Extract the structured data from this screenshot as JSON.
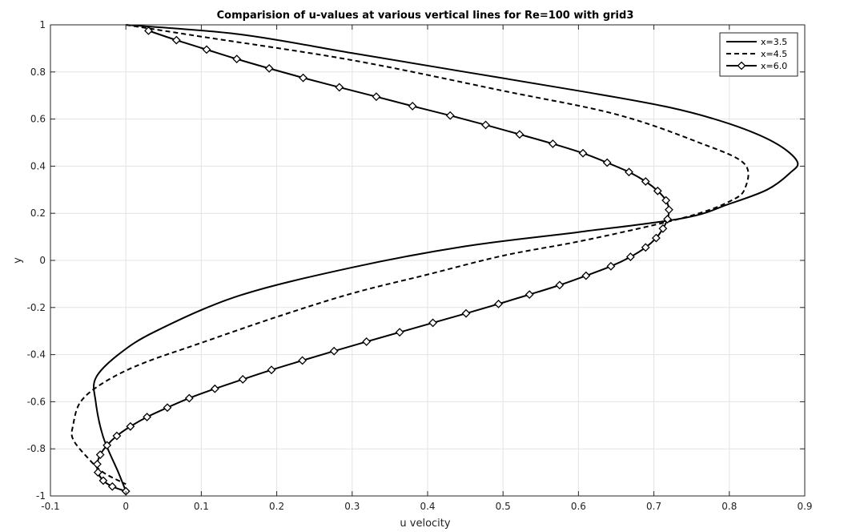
{
  "chart_data": {
    "type": "line",
    "title": "Comparision of u-values at various vertical lines for Re=100 with grid3",
    "xlabel": "u velocity",
    "ylabel": "y",
    "xlim": [
      -0.1,
      0.9
    ],
    "ylim": [
      -1,
      1
    ],
    "xticks": [
      "-0.1",
      "0",
      "0.1",
      "0.2",
      "0.3",
      "0.4",
      "0.5",
      "0.6",
      "0.7",
      "0.8",
      "0.9"
    ],
    "yticks": [
      "-1",
      "-0.8",
      "-0.6",
      "-0.4",
      "-0.2",
      "0",
      "0.2",
      "0.4",
      "0.6",
      "0.8",
      "1"
    ],
    "grid": true,
    "legend_position": "top-right",
    "series": [
      {
        "name": "x=3.5",
        "style": "solid",
        "x": [
          0,
          0.15,
          0.3,
          0.45,
          0.6,
          0.72,
          0.8,
          0.86,
          0.89,
          0.88,
          0.85,
          0.8,
          0.74,
          0.6,
          0.45,
          0.3,
          0.15,
          0.04,
          -0.01,
          -0.04,
          -0.04,
          -0.03,
          -0.01,
          0
        ],
        "y": [
          1,
          0.96,
          0.88,
          0.8,
          0.72,
          0.65,
          0.58,
          0.5,
          0.42,
          0.37,
          0.3,
          0.24,
          0.18,
          0.12,
          0.06,
          -0.03,
          -0.15,
          -0.3,
          -0.4,
          -0.5,
          -0.6,
          -0.75,
          -0.9,
          -0.98
        ]
      },
      {
        "name": "x=4.5",
        "style": "dashed",
        "x": [
          0,
          0.1,
          0.3,
          0.5,
          0.65,
          0.76,
          0.82,
          0.82,
          0.8,
          0.76,
          0.7,
          0.6,
          0.5,
          0.4,
          0.3,
          0.2,
          0.1,
          0.02,
          -0.03,
          -0.06,
          -0.07,
          -0.07,
          -0.05,
          -0.03,
          0
        ],
        "y": [
          1,
          0.95,
          0.85,
          0.72,
          0.62,
          0.5,
          0.41,
          0.3,
          0.25,
          0.2,
          0.15,
          0.08,
          0.02,
          -0.06,
          -0.14,
          -0.24,
          -0.35,
          -0.44,
          -0.52,
          -0.6,
          -0.7,
          -0.76,
          -0.84,
          -0.9,
          -0.95
        ]
      },
      {
        "name": "x=6.0",
        "style": "solid-diamond",
        "x": [
          0.03,
          0.067,
          0.107,
          0.147,
          0.19,
          0.235,
          0.283,
          0.332,
          0.38,
          0.43,
          0.477,
          0.522,
          0.566,
          0.606,
          0.638,
          0.667,
          0.689,
          0.705,
          0.716,
          0.72,
          0.718,
          0.712,
          0.703,
          0.689,
          0.669,
          0.643,
          0.61,
          0.575,
          0.535,
          0.494,
          0.451,
          0.407,
          0.363,
          0.319,
          0.276,
          0.234,
          0.193,
          0.155,
          0.118,
          0.084,
          0.055,
          0.028,
          0.006,
          -0.012,
          -0.025,
          -0.034,
          -0.038,
          -0.037,
          -0.03,
          -0.018,
          0
        ],
        "y": [
          0.975,
          0.935,
          0.895,
          0.855,
          0.815,
          0.775,
          0.735,
          0.695,
          0.655,
          0.615,
          0.575,
          0.535,
          0.495,
          0.455,
          0.415,
          0.375,
          0.335,
          0.295,
          0.255,
          0.215,
          0.175,
          0.135,
          0.095,
          0.055,
          0.015,
          -0.025,
          -0.065,
          -0.105,
          -0.145,
          -0.185,
          -0.225,
          -0.265,
          -0.305,
          -0.345,
          -0.385,
          -0.425,
          -0.465,
          -0.505,
          -0.545,
          -0.585,
          -0.625,
          -0.665,
          -0.705,
          -0.745,
          -0.785,
          -0.825,
          -0.865,
          -0.9,
          -0.935,
          -0.96,
          -0.98
        ]
      }
    ]
  }
}
